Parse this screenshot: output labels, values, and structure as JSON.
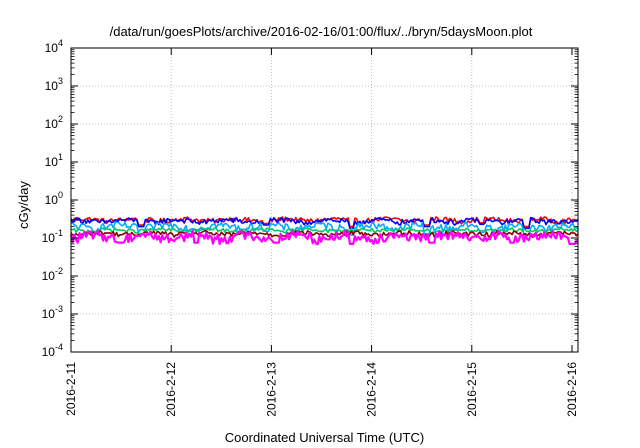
{
  "chart_data": {
    "type": "line",
    "title": "/data/run/goesPlots/archive/2016-02-16/01:00/flux/../bryn/5daysMoon.plot",
    "xlabel": "Coordinated Universal Time (UTC)",
    "ylabel": "cGy/day",
    "y_scale": "log",
    "ylim_exponents": [
      -4,
      4
    ],
    "y_ticks": [
      {
        "base": "10",
        "exp": "4"
      },
      {
        "base": "10",
        "exp": "3"
      },
      {
        "base": "10",
        "exp": "2"
      },
      {
        "base": "10",
        "exp": "1"
      },
      {
        "base": "10",
        "exp": "0"
      },
      {
        "base": "10",
        "exp": "-1"
      },
      {
        "base": "10",
        "exp": "-2"
      },
      {
        "base": "10",
        "exp": "-3"
      },
      {
        "base": "10",
        "exp": "-4"
      }
    ],
    "x_ticks": [
      "2016-2-11",
      "2016-2-12",
      "2016-2-13",
      "2016-2-14",
      "2016-2-15",
      "2016-2-16"
    ],
    "xlim_days": [
      0,
      5.06
    ],
    "grid": true,
    "legend": "none",
    "series": [
      {
        "color": "#ff0000",
        "baseline": 0.3,
        "amplitude": 0.05,
        "dips": [
          [
            0.7,
            0.22
          ],
          [
            1.95,
            0.24
          ],
          [
            2.8,
            0.2
          ],
          [
            3.55,
            0.22
          ],
          [
            4.1,
            0.25
          ],
          [
            4.55,
            0.2
          ]
        ]
      },
      {
        "color": "#0000ff",
        "baseline": 0.28,
        "amplitude": 0.05,
        "dips": [
          [
            0.7,
            0.2
          ],
          [
            1.95,
            0.22
          ],
          [
            2.8,
            0.18
          ],
          [
            3.55,
            0.2
          ],
          [
            4.1,
            0.23
          ],
          [
            4.55,
            0.18
          ]
        ]
      },
      {
        "color": "#00aaff",
        "baseline": 0.2,
        "amplitude": 0.05,
        "dips": [
          [
            0.7,
            0.13
          ],
          [
            1.95,
            0.15
          ],
          [
            2.8,
            0.12
          ],
          [
            3.55,
            0.13
          ],
          [
            4.1,
            0.14
          ],
          [
            4.55,
            0.12
          ]
        ]
      },
      {
        "color": "#00cc66",
        "baseline": 0.16,
        "amplitude": 0.02,
        "dips": []
      },
      {
        "color": "#880000",
        "baseline": 0.13,
        "amplitude": 0.02,
        "dips": []
      },
      {
        "color": "#ff00ff",
        "baseline": 0.11,
        "amplitude": 0.035,
        "dips": [
          [
            0.5,
            0.075
          ],
          [
            1.25,
            0.075
          ],
          [
            2.05,
            0.075
          ],
          [
            2.8,
            0.07
          ],
          [
            3.6,
            0.075
          ],
          [
            4.4,
            0.075
          ],
          [
            5.0,
            0.07
          ]
        ]
      }
    ]
  }
}
